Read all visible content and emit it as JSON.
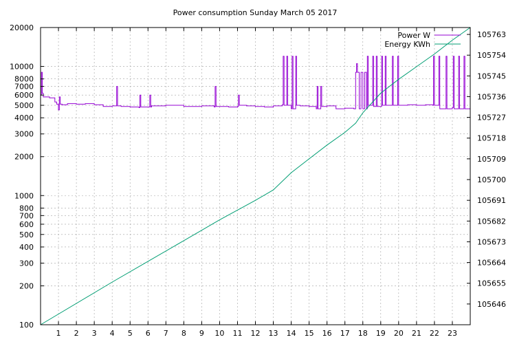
{
  "chart_data": {
    "type": "line",
    "title": "Power consumption Sunday March 05 2017",
    "x": {
      "range": [
        0,
        24
      ],
      "ticks": [
        1,
        2,
        3,
        4,
        5,
        6,
        7,
        8,
        9,
        10,
        11,
        12,
        13,
        14,
        15,
        16,
        17,
        18,
        19,
        20,
        21,
        22,
        23
      ],
      "label": ""
    },
    "y_left": {
      "scale": "log",
      "range": [
        100,
        20000
      ],
      "ticks": [
        100,
        200,
        300,
        400,
        500,
        600,
        700,
        800,
        1000,
        2000,
        3000,
        4000,
        5000,
        6000,
        7000,
        8000,
        10000,
        20000
      ],
      "label": ""
    },
    "y_right": {
      "scale": "linear",
      "range": [
        105637,
        105766
      ],
      "ticks": [
        105646,
        105655,
        105664,
        105673,
        105682,
        105691,
        105700,
        105709,
        105718,
        105727,
        105736,
        105745,
        105754,
        105763
      ],
      "label": ""
    },
    "grid": true,
    "legend_position": "top-right",
    "series": [
      {
        "name": "Power W",
        "axis": "left",
        "color": "#9400d3",
        "x": [
          0,
          0.05,
          0.1,
          0.15,
          0.2,
          0.5,
          0.8,
          0.9,
          1.0,
          1.05,
          1.1,
          1.2,
          1.5,
          2.0,
          2.5,
          3.0,
          3.5,
          4.0,
          4.2,
          4.25,
          4.3,
          4.5,
          5.0,
          5.5,
          5.55,
          5.6,
          6.0,
          6.1,
          6.15,
          6.2,
          7.0,
          8.0,
          9.0,
          9.5,
          9.7,
          9.75,
          9.8,
          10.0,
          10.5,
          11.0,
          11.05,
          11.1,
          11.5,
          12.0,
          12.5,
          13.0,
          13.5,
          13.55,
          13.6,
          13.7,
          13.75,
          13.8,
          14.0,
          14.05,
          14.1,
          14.2,
          14.25,
          14.3,
          14.5,
          15.0,
          15.4,
          15.45,
          15.5,
          15.6,
          15.65,
          15.7,
          16.0,
          16.5,
          17.0,
          17.5,
          17.6,
          17.65,
          17.7,
          17.8,
          17.9,
          18.0,
          18.1,
          18.2,
          18.25,
          18.3,
          18.5,
          18.55,
          18.6,
          18.7,
          18.75,
          18.8,
          19.0,
          19.05,
          19.1,
          19.2,
          19.25,
          19.3,
          19.6,
          19.65,
          19.7,
          19.9,
          19.95,
          20.0,
          20.5,
          21.0,
          21.5,
          21.9,
          21.95,
          22.0,
          22.2,
          22.25,
          22.3,
          22.6,
          22.65,
          22.7,
          23.0,
          23.05,
          23.1,
          23.3,
          23.35,
          23.4,
          23.6,
          23.65,
          23.7,
          23.9,
          24.0
        ],
        "values": [
          6000,
          9000,
          6200,
          5800,
          5800,
          5700,
          5300,
          5100,
          4600,
          5800,
          5100,
          5050,
          5150,
          5100,
          5150,
          5050,
          4900,
          4950,
          4950,
          7000,
          4950,
          4900,
          4850,
          4800,
          6000,
          4850,
          4850,
          6000,
          4850,
          4950,
          5000,
          4900,
          4950,
          4950,
          4850,
          7000,
          4900,
          4900,
          4850,
          4900,
          6000,
          5000,
          4950,
          4900,
          4850,
          4950,
          5050,
          12000,
          5000,
          5000,
          12000,
          5000,
          4700,
          12000,
          4700,
          4700,
          12000,
          5000,
          4950,
          4900,
          4700,
          7000,
          4700,
          4700,
          7000,
          4900,
          4950,
          4700,
          4750,
          4700,
          9000,
          10500,
          9000,
          4700,
          9000,
          4700,
          9000,
          4700,
          12000,
          5000,
          5000,
          12000,
          4900,
          4900,
          12000,
          4900,
          4900,
          12000,
          5000,
          5000,
          12000,
          5000,
          5000,
          12000,
          5000,
          5000,
          12000,
          5000,
          5050,
          5000,
          5050,
          5000,
          12000,
          5000,
          5000,
          12000,
          4700,
          4700,
          12000,
          4700,
          4800,
          12000,
          4700,
          4700,
          12000,
          4700,
          4700,
          12000,
          4700,
          4700,
          12000
        ]
      },
      {
        "name": "Energy KWh",
        "axis": "right",
        "color": "#009e73",
        "x": [
          0,
          4,
          8,
          10,
          12,
          13,
          14,
          15,
          16,
          17,
          17.6,
          18,
          19,
          20,
          21,
          22,
          23,
          24
        ],
        "values": [
          105637,
          105655.5,
          105673.5,
          105682.5,
          105691,
          105695.5,
          105703,
          105709,
          105715,
          105720.5,
          105724.5,
          105729,
          105737.5,
          105743.5,
          105749,
          105754.5,
          105760.5,
          105766
        ]
      }
    ]
  }
}
